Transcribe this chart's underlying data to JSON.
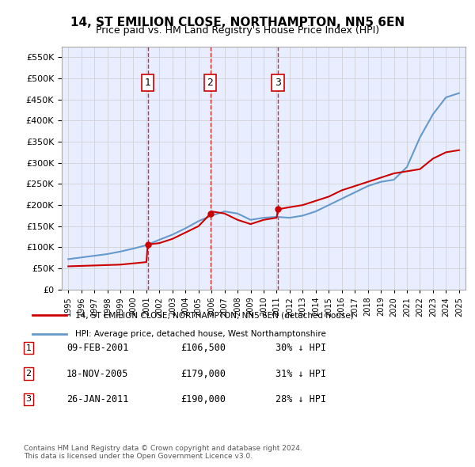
{
  "title": "14, ST EMILION CLOSE, NORTHAMPTON, NN5 6EN",
  "subtitle": "Price paid vs. HM Land Registry's House Price Index (HPI)",
  "background_color": "#f0f4ff",
  "plot_bg_color": "#e8eeff",
  "legend_label_red": "14, ST EMILION CLOSE, NORTHAMPTON, NN5 6EN (detached house)",
  "legend_label_blue": "HPI: Average price, detached house, West Northamptonshire",
  "footer": "Contains HM Land Registry data © Crown copyright and database right 2024.\nThis data is licensed under the Open Government Licence v3.0.",
  "transactions": [
    {
      "num": 1,
      "date": "09-FEB-2001",
      "price": 106500,
      "pct": "30%",
      "dir": "↓",
      "year": 2001.1
    },
    {
      "num": 2,
      "date": "18-NOV-2005",
      "price": 179000,
      "pct": "31%",
      "dir": "↓",
      "year": 2005.9
    },
    {
      "num": 3,
      "date": "26-JAN-2011",
      "price": 190000,
      "pct": "28%",
      "dir": "↓",
      "year": 2011.1
    }
  ],
  "red_color": "#cc0000",
  "blue_color": "#6699cc",
  "dashed_color": "#cc0000",
  "grid_color": "#cccccc",
  "ylim": [
    0,
    575000
  ],
  "yticks": [
    0,
    50000,
    100000,
    150000,
    200000,
    250000,
    300000,
    350000,
    400000,
    450000,
    500000,
    550000
  ],
  "xlim": [
    1994.5,
    2025.5
  ],
  "hpi_years": [
    1995,
    1996,
    1997,
    1998,
    1999,
    2000,
    2001,
    2002,
    2003,
    2004,
    2005,
    2006,
    2007,
    2008,
    2009,
    2010,
    2011,
    2012,
    2013,
    2014,
    2015,
    2016,
    2017,
    2018,
    2019,
    2020,
    2021,
    2022,
    2023,
    2024,
    2025
  ],
  "hpi_values": [
    72000,
    76000,
    80000,
    84000,
    90000,
    97000,
    105000,
    118000,
    130000,
    145000,
    162000,
    175000,
    185000,
    180000,
    165000,
    170000,
    172000,
    170000,
    175000,
    185000,
    200000,
    215000,
    230000,
    245000,
    255000,
    260000,
    290000,
    360000,
    415000,
    455000,
    465000
  ],
  "red_years": [
    1995,
    1996,
    1997,
    1998,
    1999,
    2000,
    2001,
    2001.1,
    2002,
    2003,
    2004,
    2005,
    2005.9,
    2006,
    2007,
    2008,
    2009,
    2010,
    2011,
    2011.1,
    2012,
    2013,
    2014,
    2015,
    2016,
    2017,
    2018,
    2019,
    2020,
    2021,
    2022,
    2023,
    2024,
    2025
  ],
  "red_values": [
    55000,
    56000,
    57000,
    58000,
    59000,
    62000,
    65000,
    106500,
    110000,
    120000,
    135000,
    150000,
    179000,
    185000,
    180000,
    165000,
    155000,
    165000,
    170000,
    190000,
    195000,
    200000,
    210000,
    220000,
    235000,
    245000,
    255000,
    265000,
    275000,
    280000,
    285000,
    310000,
    325000,
    330000
  ]
}
